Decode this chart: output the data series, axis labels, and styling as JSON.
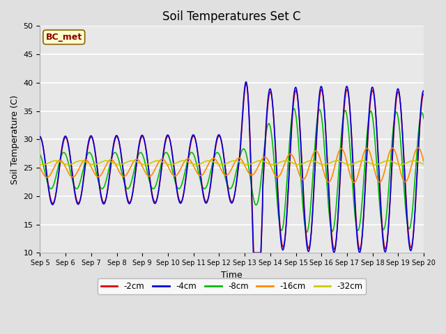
{
  "title": "Soil Temperatures Set C",
  "xlabel": "Time",
  "ylabel": "Soil Temperature (C)",
  "ylim": [
    10,
    50
  ],
  "xlim": [
    0,
    15
  ],
  "x_tick_labels": [
    "Sep 5",
    "Sep 6",
    "Sep 7",
    "Sep 8",
    "Sep 9",
    "Sep 10",
    "Sep 11",
    "Sep 12",
    "Sep 13",
    "Sep 14",
    "Sep 15",
    "Sep 16",
    "Sep 17",
    "Sep 18",
    "Sep 19",
    "Sep 20"
  ],
  "annotation": "BC_met",
  "bg_color": "#e8e8e8",
  "fig_color": "#e0e0e0",
  "line_colors": {
    "-2cm": "#dd0000",
    "-4cm": "#0000dd",
    "-8cm": "#00bb00",
    "-16cm": "#ff8800",
    "-32cm": "#cccc00"
  }
}
